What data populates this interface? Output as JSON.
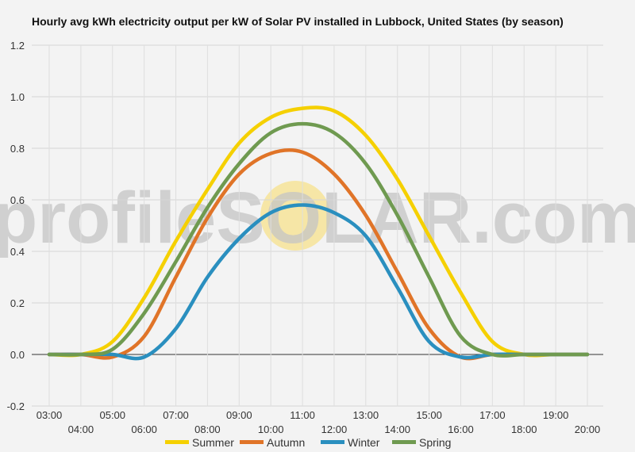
{
  "chart_data": {
    "type": "line",
    "title": "Hourly avg kWh electricity output per kW of Solar PV installed in Lubbock, United States (by season)",
    "xlabel": "",
    "ylabel": "",
    "ylim": [
      -0.2,
      1.2
    ],
    "yticks": [
      "-0.2",
      "0.0",
      "0.2",
      "0.4",
      "0.6",
      "0.8",
      "1.0",
      "1.2"
    ],
    "ytick_values": [
      -0.2,
      0,
      0.2,
      0.4,
      0.6,
      0.8,
      1.0,
      1.2
    ],
    "x": [
      "03:00",
      "04:00",
      "05:00",
      "06:00",
      "07:00",
      "08:00",
      "09:00",
      "10:00",
      "11:00",
      "12:00",
      "13:00",
      "14:00",
      "15:00",
      "16:00",
      "17:00",
      "18:00",
      "19:00",
      "20:00"
    ],
    "grid": true,
    "legend_position": "bottom",
    "watermark": "profileSOLAR.com",
    "series": [
      {
        "name": "Summer",
        "color": "#f5d000",
        "values": [
          0.0,
          0.0,
          0.05,
          0.22,
          0.44,
          0.64,
          0.82,
          0.92,
          0.955,
          0.945,
          0.85,
          0.68,
          0.46,
          0.24,
          0.05,
          0.0,
          0.0,
          0.0
        ]
      },
      {
        "name": "Autumn",
        "color": "#e07428",
        "values": [
          0.0,
          0.0,
          -0.01,
          0.07,
          0.3,
          0.53,
          0.7,
          0.78,
          0.785,
          0.7,
          0.54,
          0.32,
          0.1,
          -0.01,
          0.0,
          0.0,
          0.0,
          0.0
        ]
      },
      {
        "name": "Winter",
        "color": "#2a8fbf",
        "values": [
          0.0,
          0.0,
          0.0,
          -0.01,
          0.1,
          0.3,
          0.45,
          0.55,
          0.58,
          0.55,
          0.46,
          0.26,
          0.05,
          -0.01,
          0.0,
          0.0,
          0.0,
          0.0
        ]
      },
      {
        "name": "Spring",
        "color": "#6f9a50",
        "values": [
          0.0,
          0.0,
          0.02,
          0.16,
          0.36,
          0.57,
          0.74,
          0.86,
          0.895,
          0.86,
          0.74,
          0.54,
          0.3,
          0.07,
          0.0,
          0.0,
          0.0,
          0.0
        ]
      }
    ]
  }
}
